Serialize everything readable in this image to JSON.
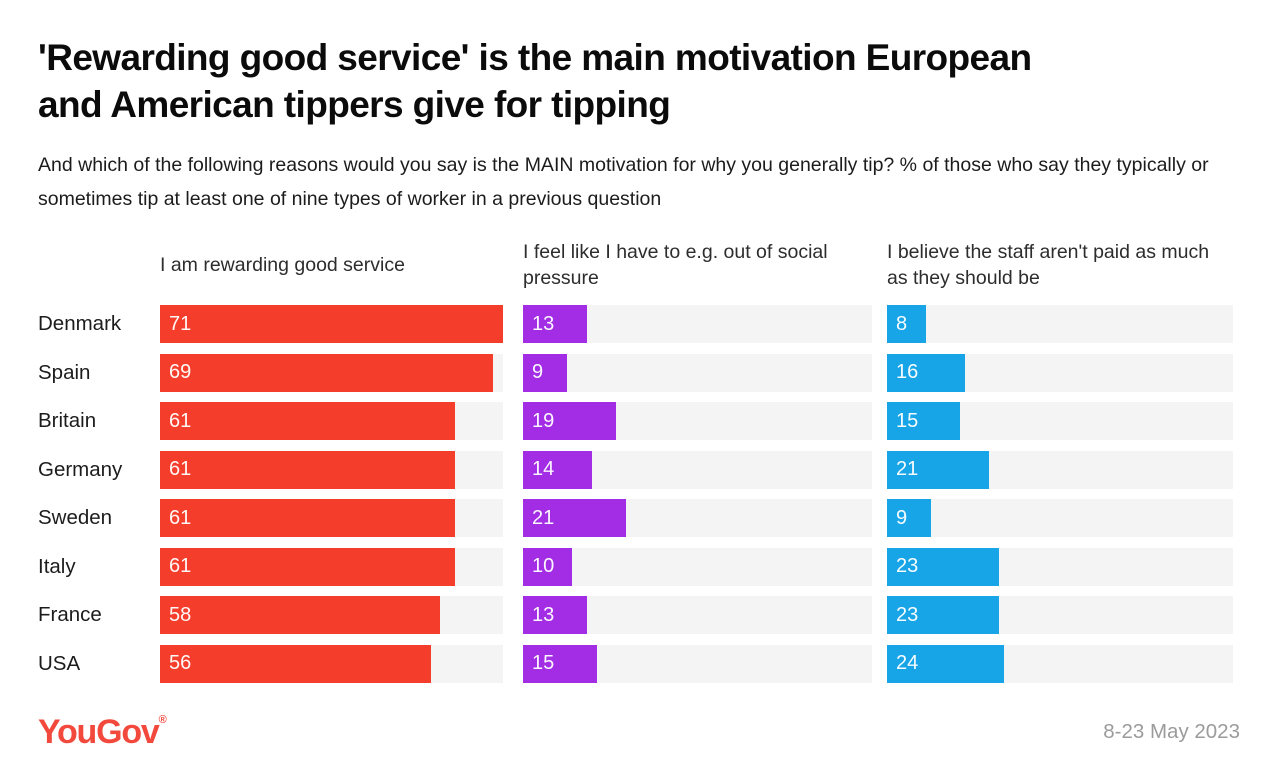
{
  "title": "'Rewarding good service' is the main motivation European and American tippers give for tipping",
  "subtitle": "And which of the following reasons would you say is the MAIN motivation for why you generally tip? % of those who say they typically or sometimes tip at least one of nine types of worker in a previous question",
  "footer": {
    "logo_text": "YouGov",
    "logo_reg": "®",
    "date_range": "8-23 May 2023"
  },
  "colors": {
    "reward_red": "#f43e2b",
    "pressure_purple": "#a32de5",
    "pay_blue": "#18a5e8",
    "track_gray": "#f4f4f4",
    "logo_red": "#f2493c",
    "date_gray": "#9b9b9b"
  },
  "chart_data": {
    "type": "bar",
    "orientation": "horizontal",
    "unit": "%",
    "categories": [
      "Denmark",
      "Spain",
      "Britain",
      "Germany",
      "Sweden",
      "Italy",
      "France",
      "USA"
    ],
    "series": [
      {
        "name": "I am rewarding good service",
        "color": "#f43e2b",
        "values": [
          71,
          69,
          61,
          61,
          61,
          61,
          58,
          56
        ]
      },
      {
        "name": "I feel like I have to e.g. out of social pressure",
        "color": "#a32de5",
        "values": [
          13,
          9,
          19,
          14,
          21,
          10,
          13,
          15
        ]
      },
      {
        "name": "I believe the staff aren't paid as much as they should be",
        "color": "#18a5e8",
        "values": [
          8,
          16,
          15,
          21,
          9,
          23,
          23,
          24
        ]
      }
    ],
    "xlim": [
      0,
      71
    ],
    "value_labels": "inside-left",
    "grid": false,
    "legend_position": "panel headers above each bar column"
  }
}
